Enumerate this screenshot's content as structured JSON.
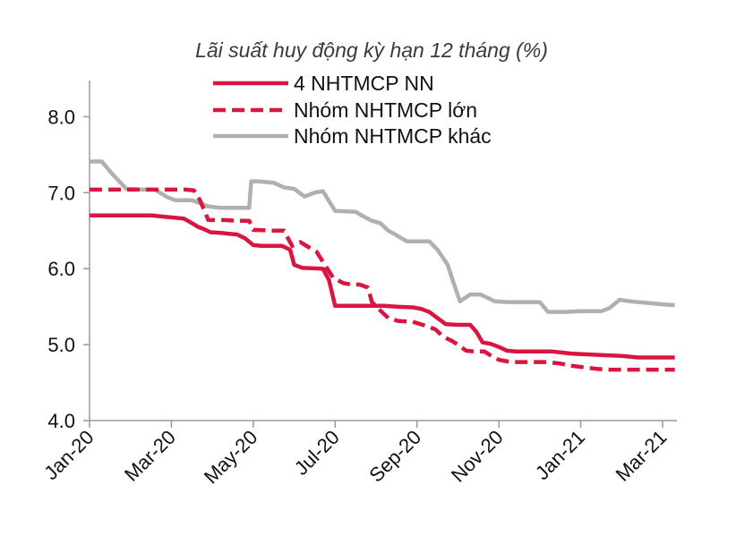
{
  "chart_data": {
    "type": "line",
    "title": "Lãi suất huy động kỳ hạn 12 tháng (%)",
    "xlabel": "",
    "ylabel": "",
    "ylim": [
      4.0,
      8.5
    ],
    "yticks": [
      4.0,
      5.0,
      6.0,
      7.0,
      8.0
    ],
    "ytick_labels": [
      "4.0",
      "5.0",
      "6.0",
      "7.0",
      "8.0"
    ],
    "xlim": [
      0,
      14.35
    ],
    "xticks": [
      0,
      2,
      4,
      6,
      8,
      10,
      12,
      14
    ],
    "xtick_labels": [
      "Jan-20",
      "Mar-20",
      "May-20",
      "Jul-20",
      "Sep-20",
      "Nov-20",
      "Jan-21",
      "Mar-21"
    ],
    "legend_position": "top",
    "series": [
      {
        "name": "4 NHTMCP NN",
        "color": "#d8163f",
        "style": "solid",
        "points": [
          [
            0,
            6.7
          ],
          [
            1,
            6.7
          ],
          [
            1.5,
            6.7
          ],
          [
            1.9,
            6.68
          ],
          [
            2.3,
            6.66
          ],
          [
            2.5,
            6.6
          ],
          [
            2.65,
            6.55
          ],
          [
            2.8,
            6.52
          ],
          [
            2.95,
            6.48
          ],
          [
            3.2,
            6.47
          ],
          [
            3.4,
            6.46
          ],
          [
            3.6,
            6.45
          ],
          [
            3.8,
            6.4
          ],
          [
            4.0,
            6.31
          ],
          [
            4.2,
            6.3
          ],
          [
            4.7,
            6.3
          ],
          [
            4.9,
            6.25
          ],
          [
            5.0,
            6.05
          ],
          [
            5.2,
            6.01
          ],
          [
            5.7,
            6.0
          ],
          [
            5.85,
            5.85
          ],
          [
            6.0,
            5.51
          ],
          [
            6.6,
            5.51
          ],
          [
            6.85,
            5.51
          ],
          [
            7.2,
            5.51
          ],
          [
            7.5,
            5.5
          ],
          [
            7.9,
            5.49
          ],
          [
            8.1,
            5.47
          ],
          [
            8.3,
            5.43
          ],
          [
            8.5,
            5.35
          ],
          [
            8.7,
            5.27
          ],
          [
            9.0,
            5.26
          ],
          [
            9.3,
            5.26
          ],
          [
            9.45,
            5.17
          ],
          [
            9.6,
            5.03
          ],
          [
            9.8,
            5.01
          ],
          [
            10.0,
            4.97
          ],
          [
            10.2,
            4.92
          ],
          [
            10.4,
            4.91
          ],
          [
            11.0,
            4.91
          ],
          [
            11.3,
            4.91
          ],
          [
            11.8,
            4.88
          ],
          [
            12.2,
            4.87
          ],
          [
            12.6,
            4.86
          ],
          [
            13.0,
            4.85
          ],
          [
            13.4,
            4.83
          ],
          [
            13.8,
            4.83
          ],
          [
            14.3,
            4.83
          ]
        ]
      },
      {
        "name": "Nhóm NHTMCP lớn",
        "color": "#d8163f",
        "style": "dashed",
        "points": [
          [
            0,
            7.04
          ],
          [
            1,
            7.04
          ],
          [
            1.4,
            7.04
          ],
          [
            2,
            7.04
          ],
          [
            2.35,
            7.04
          ],
          [
            2.55,
            7.03
          ],
          [
            2.7,
            6.9
          ],
          [
            2.9,
            6.64
          ],
          [
            3.3,
            6.64
          ],
          [
            3.6,
            6.63
          ],
          [
            3.9,
            6.63
          ],
          [
            4.0,
            6.51
          ],
          [
            4.5,
            6.5
          ],
          [
            4.75,
            6.5
          ],
          [
            4.95,
            6.3
          ],
          [
            5.15,
            6.35
          ],
          [
            5.3,
            6.3
          ],
          [
            5.55,
            6.22
          ],
          [
            5.75,
            6.05
          ],
          [
            5.95,
            5.88
          ],
          [
            6.2,
            5.81
          ],
          [
            6.4,
            5.79
          ],
          [
            6.6,
            5.79
          ],
          [
            6.8,
            5.75
          ],
          [
            6.9,
            5.56
          ],
          [
            7.1,
            5.45
          ],
          [
            7.3,
            5.35
          ],
          [
            7.55,
            5.31
          ],
          [
            7.9,
            5.3
          ],
          [
            8.2,
            5.25
          ],
          [
            8.45,
            5.2
          ],
          [
            8.65,
            5.1
          ],
          [
            8.85,
            5.05
          ],
          [
            9.0,
            5.0
          ],
          [
            9.2,
            4.92
          ],
          [
            9.4,
            4.91
          ],
          [
            9.65,
            4.91
          ],
          [
            9.85,
            4.84
          ],
          [
            10.0,
            4.8
          ],
          [
            10.3,
            4.77
          ],
          [
            10.7,
            4.77
          ],
          [
            11.2,
            4.77
          ],
          [
            11.5,
            4.75
          ],
          [
            11.8,
            4.72
          ],
          [
            12.1,
            4.7
          ],
          [
            12.4,
            4.68
          ],
          [
            12.7,
            4.67
          ],
          [
            13.0,
            4.67
          ],
          [
            13.5,
            4.67
          ],
          [
            14.3,
            4.67
          ]
        ]
      },
      {
        "name": "Nhóm NHTMCP khác",
        "color": "#b0b0b0",
        "style": "solid",
        "points": [
          [
            0,
            7.41
          ],
          [
            0.3,
            7.41
          ],
          [
            0.55,
            7.25
          ],
          [
            0.9,
            7.05
          ],
          [
            1.3,
            7.04
          ],
          [
            1.6,
            7.04
          ],
          [
            1.9,
            6.94
          ],
          [
            2.1,
            6.9
          ],
          [
            2.5,
            6.9
          ],
          [
            2.9,
            6.82
          ],
          [
            3.2,
            6.8
          ],
          [
            3.6,
            6.8
          ],
          [
            3.9,
            6.8
          ],
          [
            3.95,
            7.15
          ],
          [
            4.1,
            7.15
          ],
          [
            4.5,
            7.13
          ],
          [
            4.75,
            7.07
          ],
          [
            5.0,
            7.05
          ],
          [
            5.25,
            6.95
          ],
          [
            5.5,
            7.0
          ],
          [
            5.7,
            7.02
          ],
          [
            6.0,
            6.76
          ],
          [
            6.5,
            6.75
          ],
          [
            6.65,
            6.7
          ],
          [
            6.9,
            6.63
          ],
          [
            7.1,
            6.6
          ],
          [
            7.3,
            6.5
          ],
          [
            7.5,
            6.44
          ],
          [
            7.75,
            6.36
          ],
          [
            8.15,
            6.36
          ],
          [
            8.3,
            6.36
          ],
          [
            8.5,
            6.25
          ],
          [
            8.75,
            6.05
          ],
          [
            8.9,
            5.8
          ],
          [
            9.05,
            5.57
          ],
          [
            9.3,
            5.66
          ],
          [
            9.55,
            5.66
          ],
          [
            9.9,
            5.57
          ],
          [
            10.2,
            5.56
          ],
          [
            10.6,
            5.56
          ],
          [
            11.0,
            5.56
          ],
          [
            11.2,
            5.43
          ],
          [
            11.6,
            5.43
          ],
          [
            12.0,
            5.44
          ],
          [
            12.4,
            5.44
          ],
          [
            12.5,
            5.44
          ],
          [
            12.7,
            5.48
          ],
          [
            12.95,
            5.59
          ],
          [
            13.2,
            5.57
          ],
          [
            13.6,
            5.55
          ],
          [
            14.0,
            5.53
          ],
          [
            14.3,
            5.52
          ]
        ]
      }
    ]
  }
}
